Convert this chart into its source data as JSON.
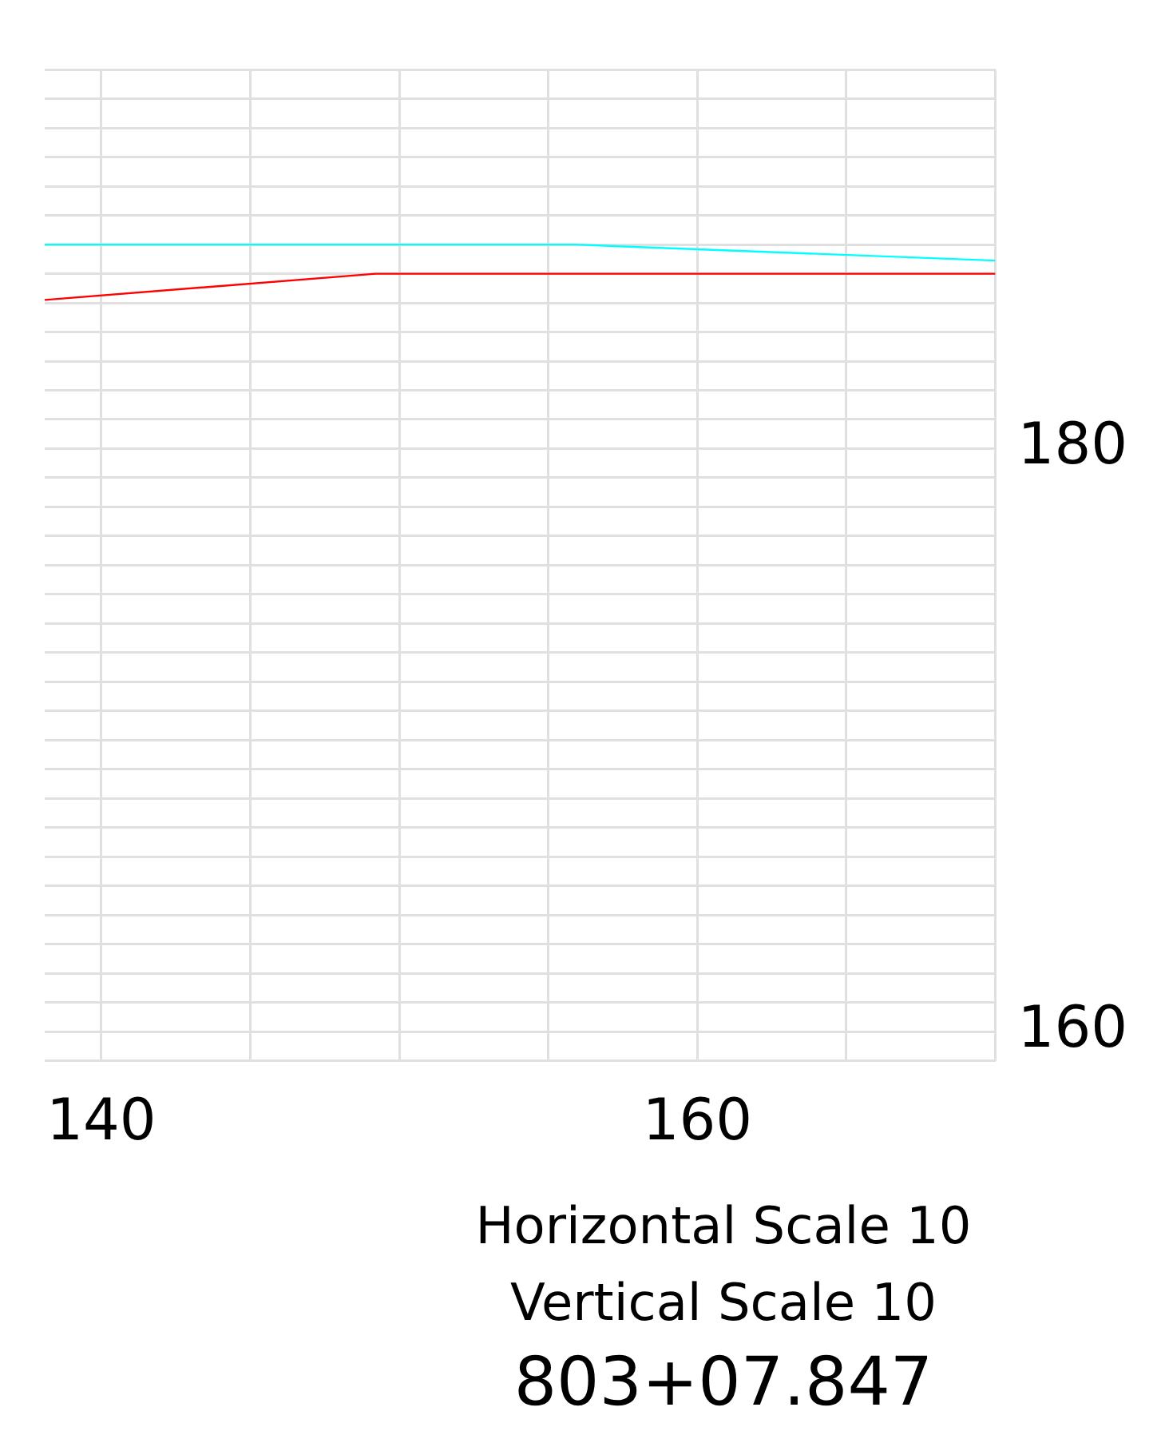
{
  "chart_data": {
    "type": "line",
    "x": [
      138.1,
      149.2,
      170
    ],
    "series": [
      {
        "color": "#ff0000",
        "values": [
          185.1,
          186,
          186
        ]
      },
      {
        "color": "#00ffff",
        "x": [
          138.1,
          155.9,
          170
        ],
        "values": [
          187,
          187,
          186.45
        ]
      }
    ],
    "xlim": [
      138.1,
      170
    ],
    "xticks": [
      140,
      {
        "value": 145,
        "label": null
      },
      {
        "value": 150,
        "label": null
      },
      {
        "value": 155,
        "label": null
      },
      160,
      {
        "value": 165,
        "label": null
      },
      {
        "value": 170,
        "label": null
      }
    ],
    "ylim": [
      159,
      193
    ],
    "yticks": [
      {
        "value": 159,
        "label": null
      },
      160,
      {
        "value": 161,
        "label": null
      },
      {
        "value": 162,
        "label": null
      },
      {
        "value": 163,
        "label": null
      },
      {
        "value": 164,
        "label": null
      },
      {
        "value": 165,
        "label": null
      },
      {
        "value": 166,
        "label": null
      },
      {
        "value": 167,
        "label": null
      },
      {
        "value": 168,
        "label": null
      },
      {
        "value": 169,
        "label": null
      },
      {
        "value": 170,
        "label": null
      },
      {
        "value": 171,
        "label": null
      },
      {
        "value": 172,
        "label": null
      },
      {
        "value": 173,
        "label": null
      },
      {
        "value": 174,
        "label": null
      },
      {
        "value": 175,
        "label": null
      },
      {
        "value": 176,
        "label": null
      },
      {
        "value": 177,
        "label": null
      },
      {
        "value": 178,
        "label": null
      },
      {
        "value": 179,
        "label": null
      },
      180,
      {
        "value": 181,
        "label": null
      },
      {
        "value": 182,
        "label": null
      },
      {
        "value": 183,
        "label": null
      },
      {
        "value": 184,
        "label": null
      },
      {
        "value": 185,
        "label": null
      },
      {
        "value": 186,
        "label": null
      },
      {
        "value": 187,
        "label": null
      },
      {
        "value": 188,
        "label": null
      },
      {
        "value": 189,
        "label": null
      },
      {
        "value": 190,
        "label": null
      },
      {
        "value": 191,
        "label": null
      },
      {
        "value": 192,
        "label": null
      },
      {
        "value": 193,
        "label": null
      }
    ],
    "grid": true,
    "legend": false,
    "marker": "none",
    "annotations": [
      "Horizontal Scale 10",
      "Vertical Scale 10",
      "803+07.847"
    ]
  }
}
